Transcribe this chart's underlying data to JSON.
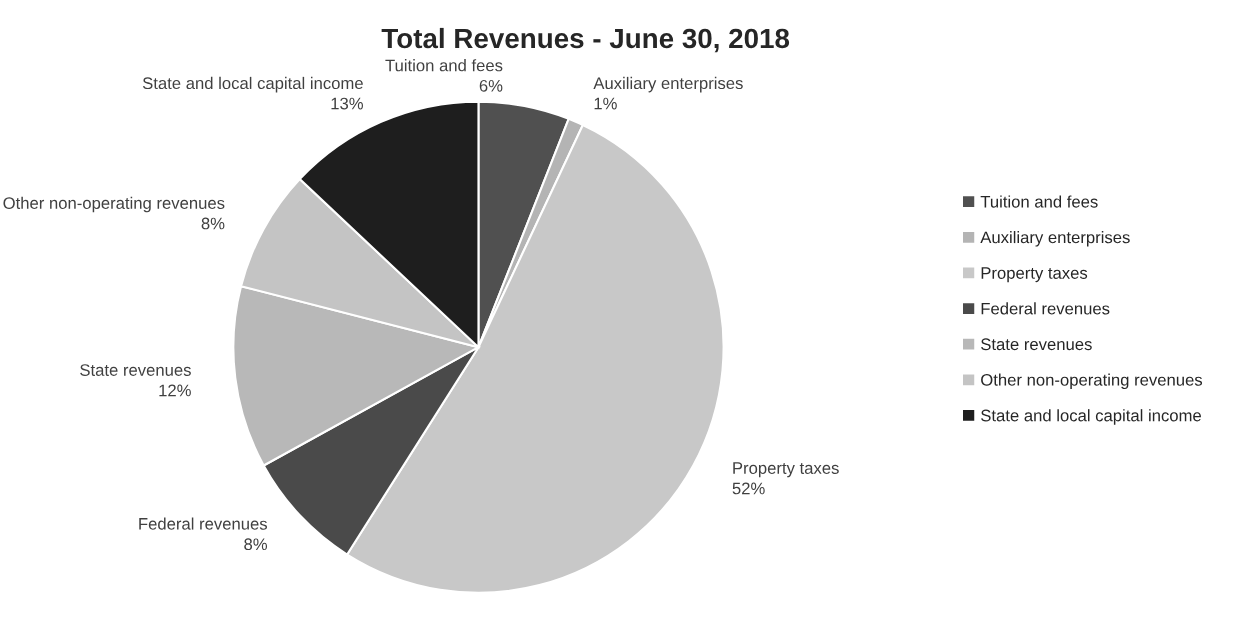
{
  "chart_data": {
    "type": "pie",
    "title": "Total Revenues - June 30, 2018",
    "categories": [
      "Tuition and fees",
      "Auxiliary enterprises",
      "Property taxes",
      "Federal revenues",
      "State revenues",
      "Other non-operating revenues",
      "State and local capital income"
    ],
    "values": [
      6,
      1,
      52,
      8,
      12,
      8,
      13
    ],
    "value_labels": [
      "6%",
      "1%",
      "52%",
      "8%",
      "12%",
      "8%",
      "13%"
    ],
    "colors": [
      "#505050",
      "#b4b4b4",
      "#c8c8c8",
      "#4a4a4a",
      "#b8b8b8",
      "#c4c4c4",
      "#1e1e1e"
    ],
    "legend": "right"
  }
}
